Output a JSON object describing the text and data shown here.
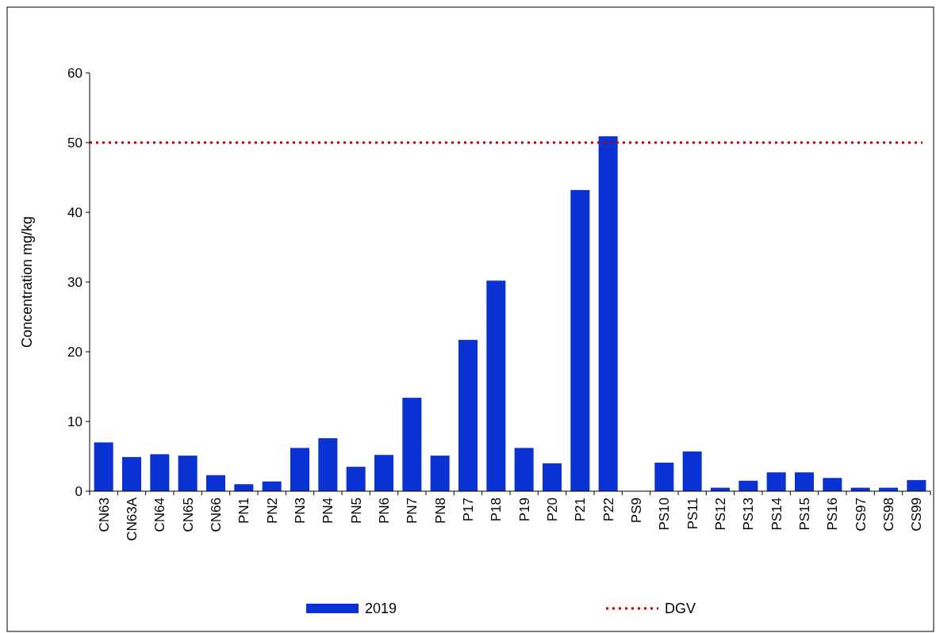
{
  "chart_data": {
    "type": "bar",
    "ylabel": "Concentration mg/kg",
    "categories": [
      "CN63",
      "CN63A",
      "CN64",
      "CN65",
      "CN66",
      "PN1",
      "PN2",
      "PN3",
      "PN4",
      "PN5",
      "PN6",
      "PN7",
      "PN8",
      "P17",
      "P18",
      "P19",
      "P20",
      "P21",
      "P22",
      "PS9",
      "PS10",
      "PS11",
      "PS12",
      "PS13",
      "PS14",
      "PS15",
      "PS16",
      "CS97",
      "CS98",
      "CS99"
    ],
    "series": [
      {
        "name": "2019",
        "color": "#0a32d2",
        "values": [
          7.0,
          4.9,
          5.3,
          5.1,
          2.3,
          1.0,
          1.4,
          6.2,
          7.6,
          3.5,
          5.2,
          13.4,
          5.1,
          21.7,
          30.2,
          6.2,
          4.0,
          43.2,
          50.9,
          0,
          4.1,
          5.7,
          0.5,
          1.5,
          2.7,
          2.7,
          1.9,
          0.5,
          0.5,
          1.6
        ]
      }
    ],
    "ylim": [
      0,
      60
    ],
    "yticks": [
      0,
      10,
      20,
      30,
      40,
      50,
      60
    ],
    "ref_lines": [
      {
        "axis": "y",
        "value": 50,
        "label": "DGV",
        "color": "#cc0000",
        "line_style": "dotted"
      }
    ],
    "grid": false,
    "legend": "bottom"
  }
}
